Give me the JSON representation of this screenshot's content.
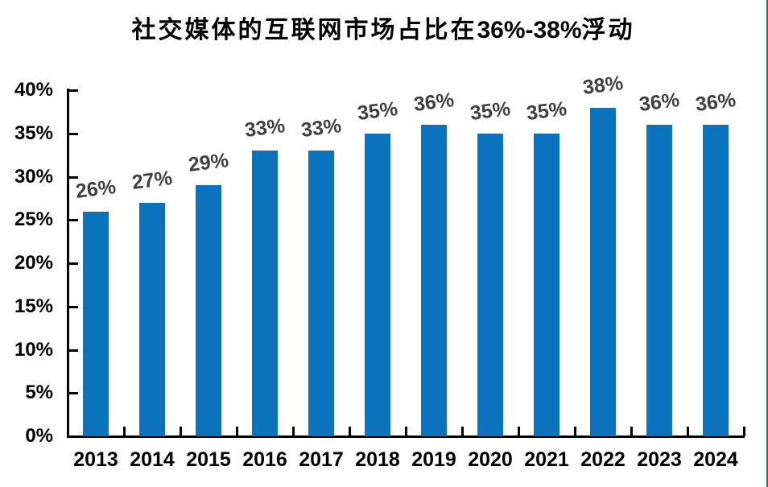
{
  "title": {
    "prefix": "社交媒体的互联网市场占比在",
    "range": "36%-38%",
    "suffix": "浮动",
    "full": "社交媒体的互联网市场占比在36%-38%浮动"
  },
  "chart_data": {
    "type": "bar",
    "title": "社交媒体的互联网市场占比在36%-38%浮动",
    "categories": [
      "2013",
      "2014",
      "2015",
      "2016",
      "2017",
      "2018",
      "2019",
      "2020",
      "2021",
      "2022",
      "2023",
      "2024"
    ],
    "values": [
      26,
      27,
      29,
      33,
      33,
      35,
      36,
      35,
      35,
      38,
      36,
      36
    ],
    "value_labels": [
      "26%",
      "27%",
      "29%",
      "33%",
      "33%",
      "35%",
      "36%",
      "35%",
      "35%",
      "38%",
      "36%",
      "36%"
    ],
    "xlabel": "",
    "ylabel": "",
    "ylim": [
      0,
      40
    ],
    "ytick_step": 5,
    "ytick_labels": [
      "0%",
      "5%",
      "10%",
      "15%",
      "20%",
      "25%",
      "30%",
      "35%",
      "40%"
    ],
    "grid": false,
    "legend": false,
    "bar_color": "#0B72BE",
    "data_label_color": "#404040",
    "axis_color": "#000000",
    "right_edge_line_color": "#3A6B55"
  }
}
